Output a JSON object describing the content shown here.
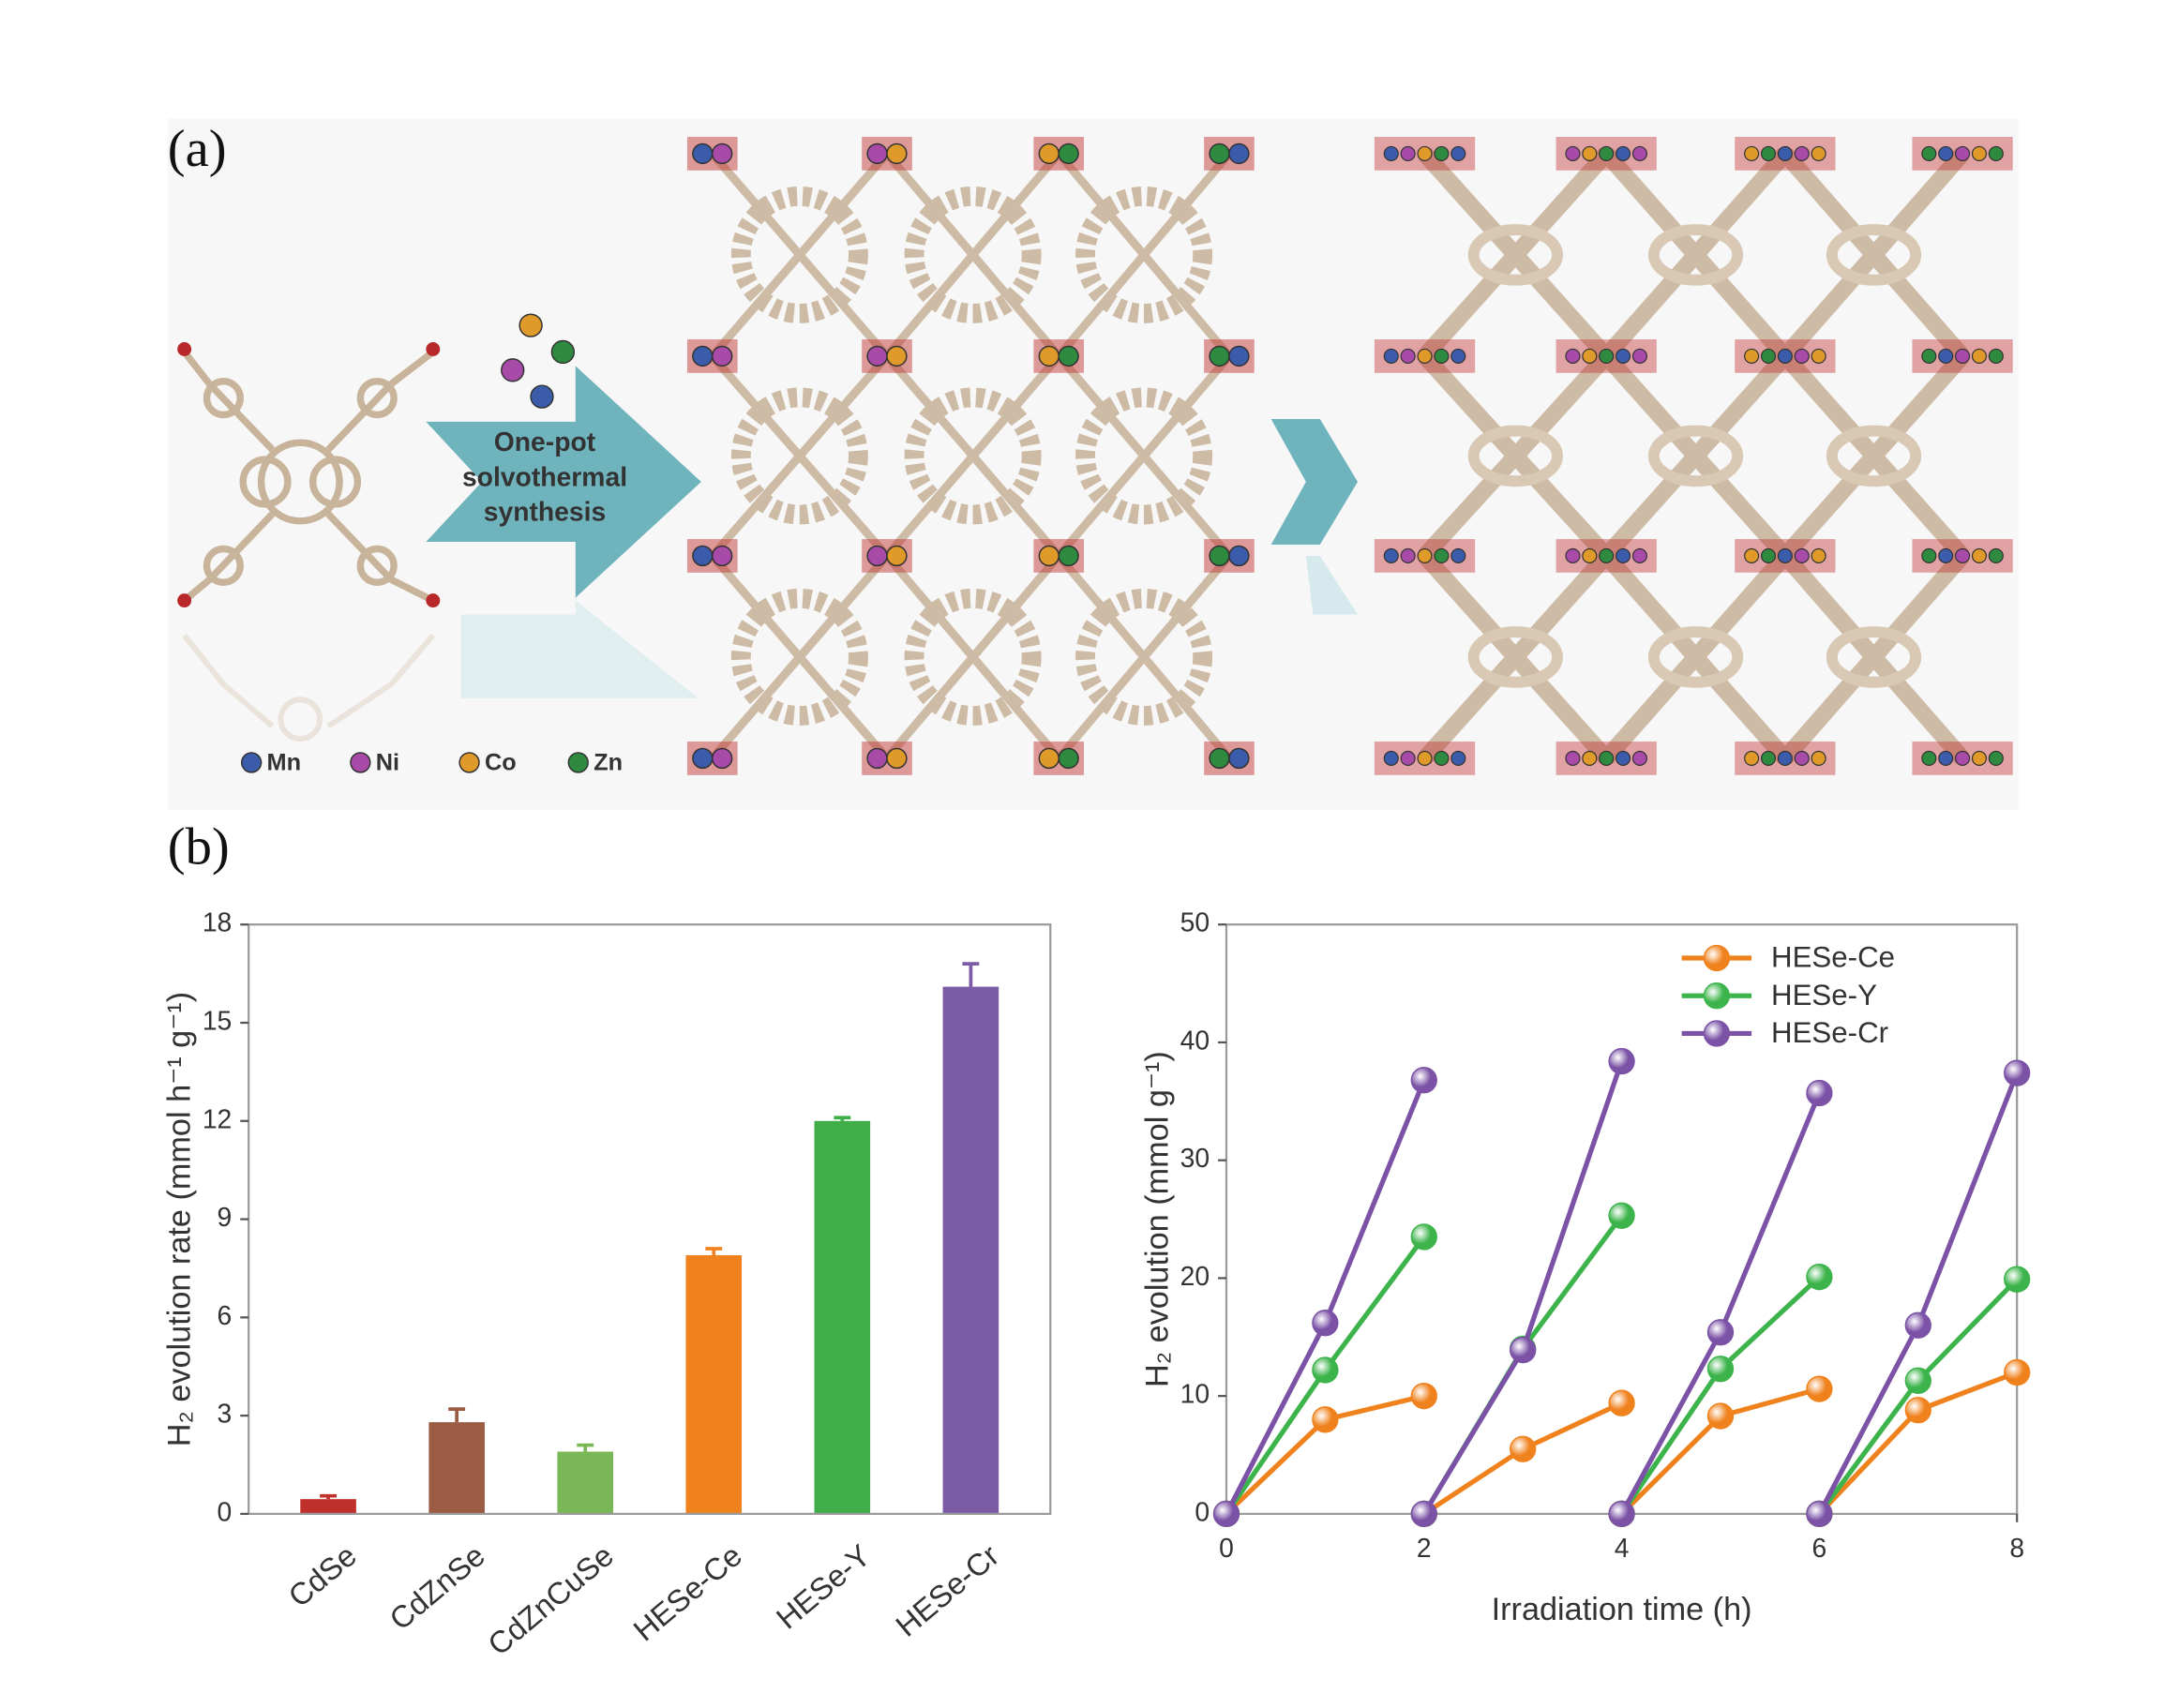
{
  "schematic": {
    "panel_a": "(a)",
    "panel_b": "(b)",
    "arrow_text": [
      "One-pot",
      "solvothermal",
      "synthesis"
    ],
    "metals": [
      {
        "name": "Mn",
        "color": "#3b5bab"
      },
      {
        "name": "Ni",
        "color": "#a84aa8"
      },
      {
        "name": "Co",
        "color": "#e09a2a"
      },
      {
        "name": "Zn",
        "color": "#2e8a3e"
      }
    ]
  },
  "chart_data": [
    {
      "type": "bar",
      "ylabel": "H₂ evolution rate (mmol h⁻¹ g⁻¹)",
      "categories": [
        "CdSe",
        "CdZnSe",
        "CdZnCuSe",
        "HESe-Ce",
        "HESe-Y",
        "HESe-Cr"
      ],
      "values": [
        0.45,
        2.8,
        1.9,
        7.9,
        12.0,
        16.1
      ],
      "errors": [
        0.1,
        0.4,
        0.2,
        0.2,
        0.1,
        0.7
      ],
      "colors": [
        "#c0302a",
        "#9b5c44",
        "#7ab857",
        "#f0821e",
        "#3fae49",
        "#7b5aa6"
      ],
      "ylim": [
        0,
        18
      ],
      "yticks": [
        0,
        3,
        6,
        9,
        12,
        15,
        18
      ]
    },
    {
      "type": "line",
      "xlabel": "Irradiation time (h)",
      "ylabel": "H₂ evolution (mmol g⁻¹)",
      "x": [
        0,
        1,
        2,
        null,
        2,
        3,
        4,
        null,
        4,
        5,
        6,
        null,
        6,
        7,
        8
      ],
      "series": [
        {
          "name": "HESe-Ce",
          "color": "#f0821e",
          "values": [
            0,
            8,
            10,
            null,
            0,
            5.5,
            9.4,
            null,
            0,
            8.3,
            10.6,
            null,
            0,
            8.8,
            12
          ]
        },
        {
          "name": "HESe-Y",
          "color": "#3cb44b",
          "values": [
            0,
            12.2,
            23.5,
            null,
            0,
            14,
            25.3,
            null,
            0,
            12.3,
            20.1,
            null,
            0,
            11.3,
            19.9
          ]
        },
        {
          "name": "HESe-Cr",
          "color": "#7b52a6",
          "values": [
            0,
            16.2,
            36.8,
            null,
            0,
            13.9,
            38.4,
            null,
            0,
            15.4,
            35.7,
            null,
            0,
            16,
            37.4
          ]
        }
      ],
      "xlim": [
        0,
        8
      ],
      "xticks": [
        0,
        2,
        4,
        6,
        8
      ],
      "ylim": [
        0,
        50
      ],
      "yticks": [
        0,
        10,
        20,
        30,
        40,
        50
      ],
      "legend": "upper right"
    }
  ]
}
